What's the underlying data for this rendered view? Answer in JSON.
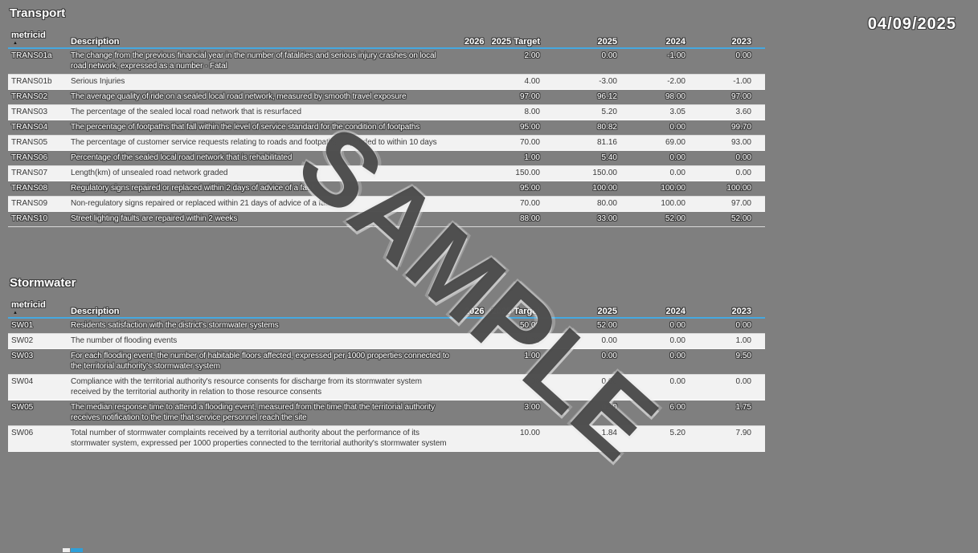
{
  "page": {
    "date": "04/09/2025",
    "watermark": "SAMPLE"
  },
  "colors": {
    "background": "#7f7f7f",
    "accent_blue": "#45a8e0",
    "light_row": "#f2f2f2",
    "watermark_gray": "#484848"
  },
  "icons": {
    "sort_ascending": "▲"
  },
  "columns": [
    "metricid",
    "Description",
    "2026",
    "2025 Target",
    "2025",
    "2024",
    "2023"
  ],
  "tables": [
    {
      "title": "Transport",
      "rows": [
        {
          "id": "TRANS01a",
          "desc": "The change from the previous financial year in the number of fatalities and serious injury crashes on local road network, expressed as a number - Fatal",
          "y2026": "",
          "target": "2.00",
          "y2025": "0.00",
          "y2024": "-1.00",
          "y2023": "0.00"
        },
        {
          "id": "TRANS01b",
          "desc": "Serious Injuries",
          "y2026": "",
          "target": "4.00",
          "y2025": "-3.00",
          "y2024": "-2.00",
          "y2023": "-1.00"
        },
        {
          "id": "TRANS02",
          "desc": "The average quality of ride on a sealed local road network, measured by smooth travel exposure",
          "y2026": "",
          "target": "97.00",
          "y2025": "96.12",
          "y2024": "98.00",
          "y2023": "97.00"
        },
        {
          "id": "TRANS03",
          "desc": "The percentage of the sealed local road network that is resurfaced",
          "y2026": "",
          "target": "8.00",
          "y2025": "5.20",
          "y2024": "3.05",
          "y2023": "3.60"
        },
        {
          "id": "TRANS04",
          "desc": "The percentage of footpaths that fall within the level of service standard for the condition of footpaths",
          "y2026": "",
          "target": "95.00",
          "y2025": "80.82",
          "y2024": "0.00",
          "y2023": "99.70"
        },
        {
          "id": "TRANS05",
          "desc": "The percentage of customer service requests relating to roads and footpaths responded to within 10 days",
          "y2026": "",
          "target": "70.00",
          "y2025": "81.16",
          "y2024": "69.00",
          "y2023": "93.00"
        },
        {
          "id": "TRANS06",
          "desc": "Percentage of the sealed local road network that is rehabilitated",
          "y2026": "",
          "target": "1.00",
          "y2025": "5.40",
          "y2024": "0.00",
          "y2023": "0.00"
        },
        {
          "id": "TRANS07",
          "desc": "Length(km) of unsealed road network graded",
          "y2026": "",
          "target": "150.00",
          "y2025": "150.00",
          "y2024": "0.00",
          "y2023": "0.00"
        },
        {
          "id": "TRANS08",
          "desc": "Regulatory signs repaired or replaced within 2 days of advice of a fault",
          "y2026": "",
          "target": "95.00",
          "y2025": "100.00",
          "y2024": "100.00",
          "y2023": "100.00"
        },
        {
          "id": "TRANS09",
          "desc": "Non-regulatory signs repaired or replaced within 21 days of advice of a fault",
          "y2026": "",
          "target": "70.00",
          "y2025": "80.00",
          "y2024": "100.00",
          "y2023": "97.00"
        },
        {
          "id": "TRANS10",
          "desc": "Street lighting faults are repaired within 2 weeks",
          "y2026": "",
          "target": "88.00",
          "y2025": "33.00",
          "y2024": "52.00",
          "y2023": "52.00"
        }
      ]
    },
    {
      "title": "Stormwater",
      "rows": [
        {
          "id": "SW01",
          "desc": "Residents satisfaction with the district's stormwater systems",
          "y2026": "",
          "target": "50.00",
          "y2025": "52.00",
          "y2024": "0.00",
          "y2023": "0.00"
        },
        {
          "id": "SW02",
          "desc": "The number of flooding events",
          "y2026": "",
          "target": "1.00",
          "y2025": "0.00",
          "y2024": "0.00",
          "y2023": "1.00"
        },
        {
          "id": "SW03",
          "desc": "For each flooding event, the number of habitable floors affected, expressed per 1000 properties connected to the territorial authority's stormwater system",
          "y2026": "",
          "target": "1.00",
          "y2025": "0.00",
          "y2024": "0.00",
          "y2023": "9.50"
        },
        {
          "id": "SW04",
          "desc": "Compliance with the territorial authority's resource consents for discharge from its stormwater system received by the territorial authority in relation to those resource consents",
          "y2026": "",
          "target": "0.00",
          "y2025": "0.00",
          "y2024": "0.00",
          "y2023": "0.00"
        },
        {
          "id": "SW05",
          "desc": "The median response time to attend a flooding event, measured from the time that the territorial authority receives notification to the time that service personnel reach the site",
          "y2026": "",
          "target": "3.00",
          "y2025": "0.30",
          "y2024": "6.00",
          "y2023": "1.75"
        },
        {
          "id": "SW06",
          "desc": "Total number of stormwater complaints received by a territorial authority about the performance of its stormwater system, expressed per 1000 properties connected to the territorial authority's stormwater system",
          "y2026": "",
          "target": "10.00",
          "y2025": "1.84",
          "y2024": "5.20",
          "y2023": "7.90"
        }
      ]
    }
  ]
}
